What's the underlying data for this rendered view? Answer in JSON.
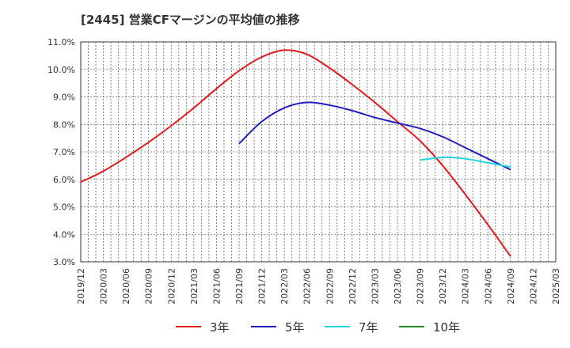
{
  "title": "[2445]  営業CFマージンの平均値の推移",
  "chart_data": {
    "type": "line",
    "title": "[2445]  営業CFマージンの平均値の推移",
    "xlabel": "",
    "ylabel": "",
    "x_ticks": [
      "2019/12",
      "2020/03",
      "2020/06",
      "2020/09",
      "2020/12",
      "2021/03",
      "2021/06",
      "2021/09",
      "2021/12",
      "2022/03",
      "2022/06",
      "2022/09",
      "2022/12",
      "2023/03",
      "2023/06",
      "2023/09",
      "2023/12",
      "2024/03",
      "2024/06",
      "2024/09",
      "2024/12",
      "2025/03"
    ],
    "y_ticks": [
      "3.0%",
      "4.0%",
      "5.0%",
      "6.0%",
      "7.0%",
      "8.0%",
      "9.0%",
      "10.0%",
      "11.0%"
    ],
    "ylim": [
      3.0,
      11.0
    ],
    "y_unit": "%",
    "grid": true,
    "legend_position": "bottom",
    "series": [
      {
        "name": "3年",
        "color": "#e31a1c",
        "points": [
          [
            "2019/12",
            5.9
          ],
          [
            "2020/03",
            6.3
          ],
          [
            "2020/06",
            6.8
          ],
          [
            "2020/09",
            7.35
          ],
          [
            "2020/12",
            7.95
          ],
          [
            "2021/03",
            8.6
          ],
          [
            "2021/06",
            9.3
          ],
          [
            "2021/09",
            9.95
          ],
          [
            "2021/12",
            10.45
          ],
          [
            "2022/03",
            10.7
          ],
          [
            "2022/06",
            10.55
          ],
          [
            "2022/09",
            10.05
          ],
          [
            "2022/12",
            9.45
          ],
          [
            "2023/03",
            8.8
          ],
          [
            "2023/06",
            8.1
          ],
          [
            "2023/09",
            7.4
          ],
          [
            "2023/12",
            6.5
          ],
          [
            "2024/03",
            5.45
          ],
          [
            "2024/06",
            4.35
          ],
          [
            "2024/09",
            3.2
          ]
        ]
      },
      {
        "name": "5年",
        "color": "#1f1fbf",
        "points": [
          [
            "2021/09",
            7.3
          ],
          [
            "2021/12",
            8.1
          ],
          [
            "2022/03",
            8.6
          ],
          [
            "2022/06",
            8.8
          ],
          [
            "2022/09",
            8.7
          ],
          [
            "2022/12",
            8.5
          ],
          [
            "2023/03",
            8.25
          ],
          [
            "2023/06",
            8.05
          ],
          [
            "2023/09",
            7.85
          ],
          [
            "2023/12",
            7.55
          ],
          [
            "2024/03",
            7.15
          ],
          [
            "2024/06",
            6.75
          ],
          [
            "2024/09",
            6.35
          ]
        ]
      },
      {
        "name": "7年",
        "color": "#22d4e0",
        "points": [
          [
            "2023/09",
            6.7
          ],
          [
            "2023/12",
            6.8
          ],
          [
            "2024/03",
            6.75
          ],
          [
            "2024/06",
            6.6
          ],
          [
            "2024/09",
            6.45
          ]
        ]
      },
      {
        "name": "10年",
        "color": "#228b22",
        "points": []
      }
    ]
  }
}
